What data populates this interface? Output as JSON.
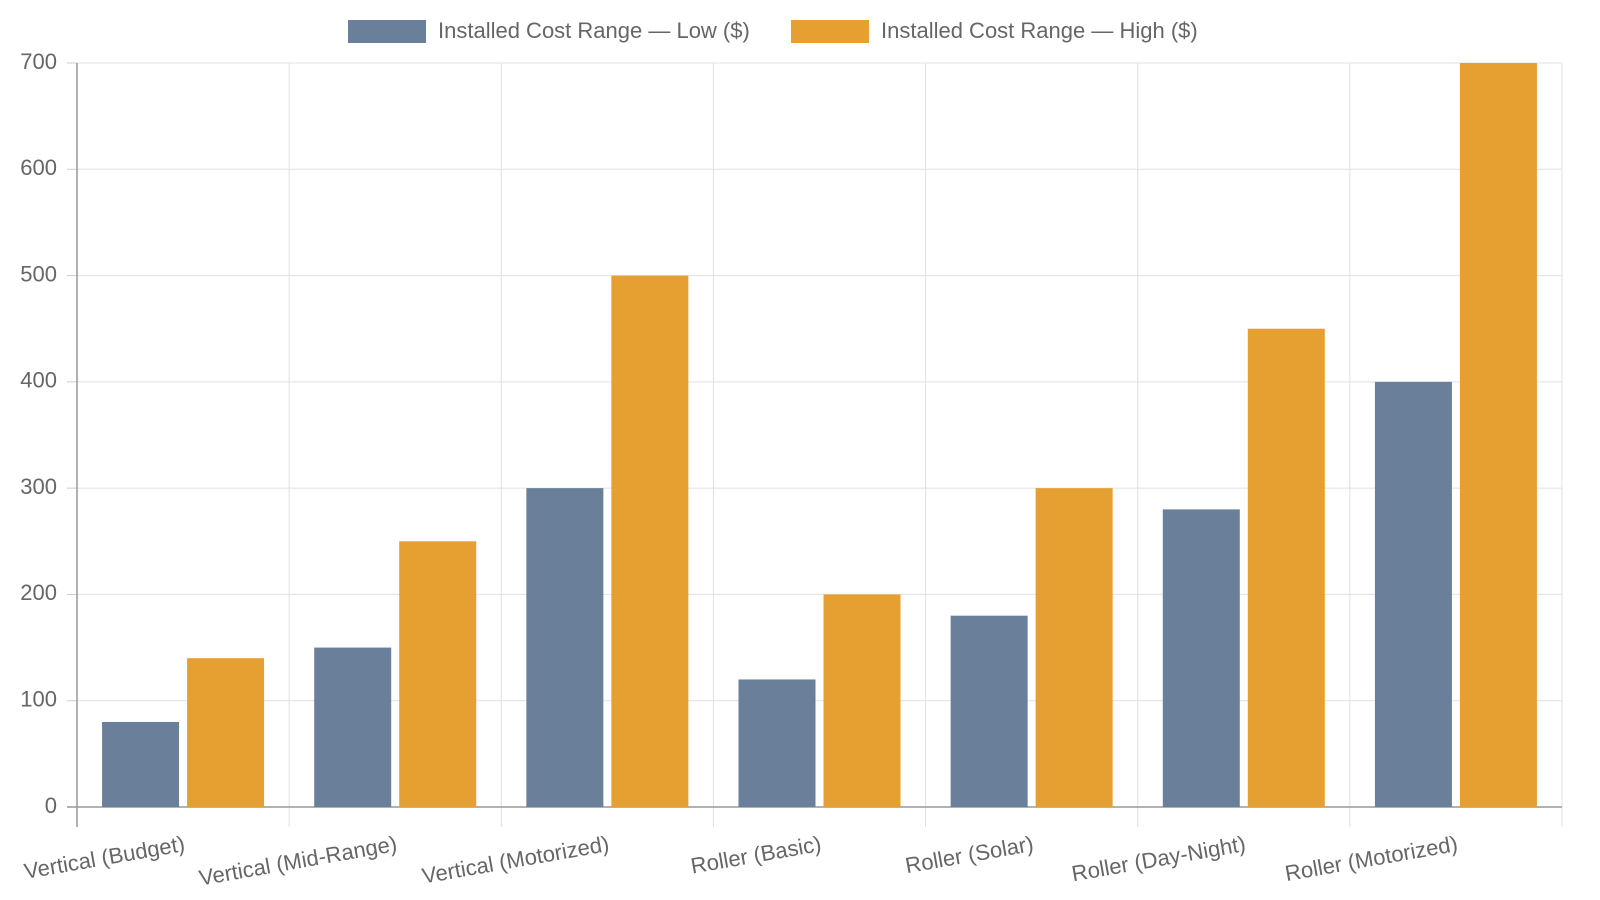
{
  "chart_data": {
    "type": "bar",
    "categories": [
      "Vertical (Budget)",
      "Vertical (Mid-Range)",
      "Vertical (Motorized)",
      "Roller (Basic)",
      "Roller (Solar)",
      "Roller (Day-Night)",
      "Roller (Motorized)"
    ],
    "series": [
      {
        "name": "Installed Cost Range — Low ($)",
        "color": "#6a7f99",
        "values": [
          80,
          150,
          300,
          120,
          180,
          280,
          400
        ]
      },
      {
        "name": "Installed Cost Range — High ($)",
        "color": "#e6a032",
        "values": [
          140,
          250,
          500,
          200,
          300,
          450,
          700
        ]
      }
    ],
    "yticks": [
      "0",
      "100",
      "200",
      "300",
      "400",
      "500",
      "600",
      "700"
    ],
    "ylim": [
      0,
      700
    ],
    "title": "",
    "xlabel": "",
    "ylabel": "",
    "grid": true,
    "legend_position": "top-center"
  }
}
